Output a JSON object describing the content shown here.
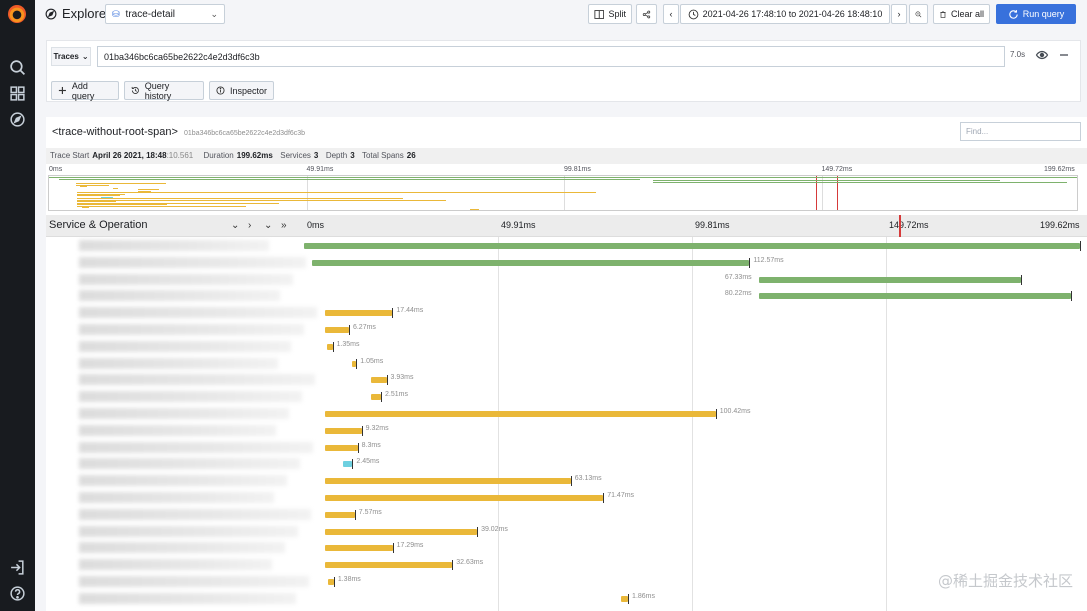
{
  "header": {
    "title": "Explore",
    "datasource": "trace-detail",
    "split_label": "Split",
    "time_range": "2021-04-26 17:48:10 to 2021-04-26 18:48:10",
    "clear_label": "Clear all",
    "run_label": "Run query"
  },
  "query": {
    "type_label": "Traces",
    "trace_id": "01ba346bc6ca65be2622c4e2d3df6c3b",
    "duration": "7.0s",
    "add_query_label": "Add query",
    "history_label": "Query history",
    "inspector_label": "Inspector"
  },
  "trace": {
    "name": "<trace-without-root-span>",
    "id": "01ba346bc6ca65be2622c4e2d3df6c3b",
    "find_placeholder": "Find...",
    "meta": {
      "start_label": "Trace Start",
      "start_value": "April 26 2021, 18:48",
      "start_ms": ":10.561",
      "duration_label": "Duration",
      "duration_value": "199.62ms",
      "services_label": "Services",
      "services_value": "3",
      "depth_label": "Depth",
      "depth_value": "3",
      "spans_label": "Total Spans",
      "spans_value": "26"
    },
    "column_label": "Service & Operation",
    "ticks": [
      "0ms",
      "49.91ms",
      "99.81ms",
      "149.72ms",
      "199.62ms"
    ],
    "total_ms": 199.62,
    "spans": [
      {
        "start": 0,
        "dur": 199.62,
        "label": "",
        "color": "#7eb26d"
      },
      {
        "start": 2.0,
        "dur": 112.57,
        "label": "112.57ms",
        "color": "#7eb26d"
      },
      {
        "start": 117.0,
        "dur": 67.33,
        "label": "67.33ms",
        "color": "#7eb26d"
      },
      {
        "start": 117.0,
        "dur": 80.22,
        "label": "80.22ms",
        "color": "#7eb26d"
      },
      {
        "start": 5.3,
        "dur": 17.44,
        "label": "17.44ms",
        "color": "#eab839"
      },
      {
        "start": 5.3,
        "dur": 6.27,
        "label": "6.27ms",
        "color": "#eab839"
      },
      {
        "start": 6.0,
        "dur": 1.35,
        "label": "1.35ms",
        "color": "#eab839"
      },
      {
        "start": 12.4,
        "dur": 1.05,
        "label": "1.05ms",
        "color": "#eab839"
      },
      {
        "start": 17.3,
        "dur": 3.93,
        "label": "3.93ms",
        "color": "#eab839"
      },
      {
        "start": 17.3,
        "dur": 2.51,
        "label": "2.51ms",
        "color": "#eab839"
      },
      {
        "start": 5.5,
        "dur": 100.42,
        "label": "100.42ms",
        "color": "#eab839"
      },
      {
        "start": 5.5,
        "dur": 9.32,
        "label": "9.32ms",
        "color": "#eab839"
      },
      {
        "start": 5.5,
        "dur": 8.3,
        "label": "8.3ms",
        "color": "#eab839"
      },
      {
        "start": 10.0,
        "dur": 2.45,
        "label": "2.45ms",
        "color": "#6ed0e0"
      },
      {
        "start": 5.5,
        "dur": 63.13,
        "label": "63.13ms",
        "color": "#eab839"
      },
      {
        "start": 5.5,
        "dur": 71.47,
        "label": "71.47ms",
        "color": "#eab839"
      },
      {
        "start": 5.5,
        "dur": 7.57,
        "label": "7.57ms",
        "color": "#eab839"
      },
      {
        "start": 5.5,
        "dur": 39.02,
        "label": "39.02ms",
        "color": "#eab839"
      },
      {
        "start": 5.5,
        "dur": 17.29,
        "label": "17.29ms",
        "color": "#eab839"
      },
      {
        "start": 5.5,
        "dur": 32.63,
        "label": "32.63ms",
        "color": "#eab839"
      },
      {
        "start": 6.3,
        "dur": 1.38,
        "label": "1.38ms",
        "color": "#eab839"
      },
      {
        "start": 81.5,
        "dur": 1.86,
        "label": "1.86ms",
        "color": "#eab839"
      }
    ]
  },
  "watermark": "@稀土掘金技术社区"
}
